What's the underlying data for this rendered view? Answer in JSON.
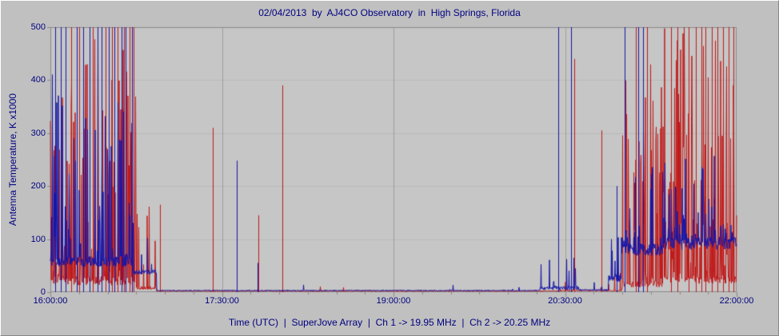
{
  "footer": {
    "label": "Time (UTC)  |  SuperJove Array  |  Ch 1 -> 19.95 MHz  |  Ch 2 -> 20.25 MHz"
  },
  "colors": {
    "background": "#c0c0c0",
    "plot_background": "#c6c6c6",
    "text": "#000080",
    "grid": "#9f9f9f",
    "grid_minor": "#b9b9b9",
    "axis": "#8a8a8a",
    "ch1": "#c01818",
    "ch2": "#1515a8"
  },
  "chart_data": {
    "type": "line",
    "title": "02/04/2013  by  AJ4CO Observatory  in  High Springs, Florida",
    "xlabel": "Time (UTC)",
    "ylabel": "Antenna Temperature, K x1000",
    "x_unit": "UTC hours",
    "xlim": [
      16,
      22
    ],
    "ylim": [
      0,
      500
    ],
    "x_ticks": [
      {
        "value": 16.0,
        "label": "16:00:00"
      },
      {
        "value": 17.5,
        "label": "17:30:00"
      },
      {
        "value": 19.0,
        "label": "19:00:00"
      },
      {
        "value": 20.5,
        "label": "20:30:00"
      },
      {
        "value": 22.0,
        "label": "22:00:00"
      }
    ],
    "x_minor_tick_step": 0.25,
    "y_ticks": [
      {
        "value": 0,
        "label": "0"
      },
      {
        "value": 100,
        "label": "100"
      },
      {
        "value": 200,
        "label": "200"
      },
      {
        "value": 300,
        "label": "300"
      },
      {
        "value": 400,
        "label": "400"
      },
      {
        "value": 500,
        "label": "500"
      }
    ],
    "grid": {
      "vertical_at": [
        17.5,
        19.0,
        20.5
      ],
      "horizontal_at": [
        100,
        200,
        300,
        400
      ]
    },
    "legend_position": "none",
    "series": [
      {
        "name": "Ch 1 -> 19.95 MHz",
        "color": "#c01818",
        "segments": [
          {
            "t0": 16.0,
            "t1": 16.75,
            "base": 22,
            "noise": 18,
            "spike_p": 0.45,
            "spike_max": 480
          },
          {
            "t0": 16.75,
            "t1": 16.93,
            "base": 8,
            "noise": 6,
            "spike_p": 0.15,
            "spike_max": 170
          },
          {
            "t0": 16.93,
            "t1": 20.45,
            "base": 2,
            "noise": 2,
            "spike_p": 0.004,
            "spike_max": 12
          },
          {
            "t0": 20.45,
            "t1": 21.0,
            "base": 3,
            "noise": 3,
            "spike_p": 0.06,
            "spike_max": 60
          },
          {
            "t0": 21.0,
            "t1": 21.35,
            "base": 15,
            "noise": 12,
            "spike_p": 0.5,
            "spike_max": 430
          },
          {
            "t0": 21.35,
            "t1": 22.0,
            "base": 25,
            "noise": 18,
            "spike_p": 0.6,
            "spike_max": 500
          }
        ],
        "spikes": [
          [
            16.96,
            165
          ],
          [
            17.42,
            310
          ],
          [
            17.82,
            145
          ],
          [
            18.03,
            390
          ],
          [
            20.58,
            440
          ],
          [
            20.82,
            305
          ]
        ],
        "saturated_at": [
          16.18,
          16.25,
          16.37,
          16.48,
          16.54,
          16.59,
          16.64,
          16.69,
          16.73,
          21.12,
          21.22,
          21.43,
          21.48,
          21.58,
          21.64,
          21.69,
          21.73,
          21.78,
          21.83,
          21.88,
          21.93,
          21.97
        ]
      },
      {
        "name": "Ch 2 -> 20.25 MHz",
        "color": "#1515a8",
        "segments": [
          {
            "t0": 16.0,
            "t1": 16.72,
            "base": 58,
            "noise": 20,
            "spike_p": 0.3,
            "spike_max": 420
          },
          {
            "t0": 16.72,
            "t1": 16.93,
            "base": 38,
            "noise": 10,
            "spike_p": 0.1,
            "spike_max": 200
          },
          {
            "t0": 16.93,
            "t1": 20.28,
            "base": 3,
            "noise": 2,
            "spike_p": 0.004,
            "spike_max": 14
          },
          {
            "t0": 20.28,
            "t1": 20.62,
            "base": 8,
            "noise": 8,
            "spike_p": 0.25,
            "spike_max": 85
          },
          {
            "t0": 20.62,
            "t1": 20.88,
            "base": 4,
            "noise": 3,
            "spike_p": 0.05,
            "spike_max": 40
          },
          {
            "t0": 20.88,
            "t1": 21.0,
            "base": 25,
            "noise": 15,
            "spike_p": 0.2,
            "spike_max": 120
          },
          {
            "t0": 21.0,
            "t1": 21.35,
            "base": 80,
            "noise": 22,
            "spike_p": 0.25,
            "spike_max": 240
          },
          {
            "t0": 21.35,
            "t1": 22.0,
            "base": 92,
            "noise": 24,
            "spike_p": 0.25,
            "spike_max": 260
          }
        ],
        "spikes": [
          [
            17.63,
            248
          ],
          [
            17.81,
            55
          ],
          [
            20.95,
            200
          ]
        ],
        "saturated_at": [
          16.04,
          16.09,
          16.13,
          16.23,
          16.29,
          16.34,
          16.41,
          16.45,
          16.51,
          16.56,
          16.62,
          16.66,
          16.71,
          20.44,
          20.55,
          21.02,
          21.14,
          21.18
        ]
      }
    ]
  }
}
